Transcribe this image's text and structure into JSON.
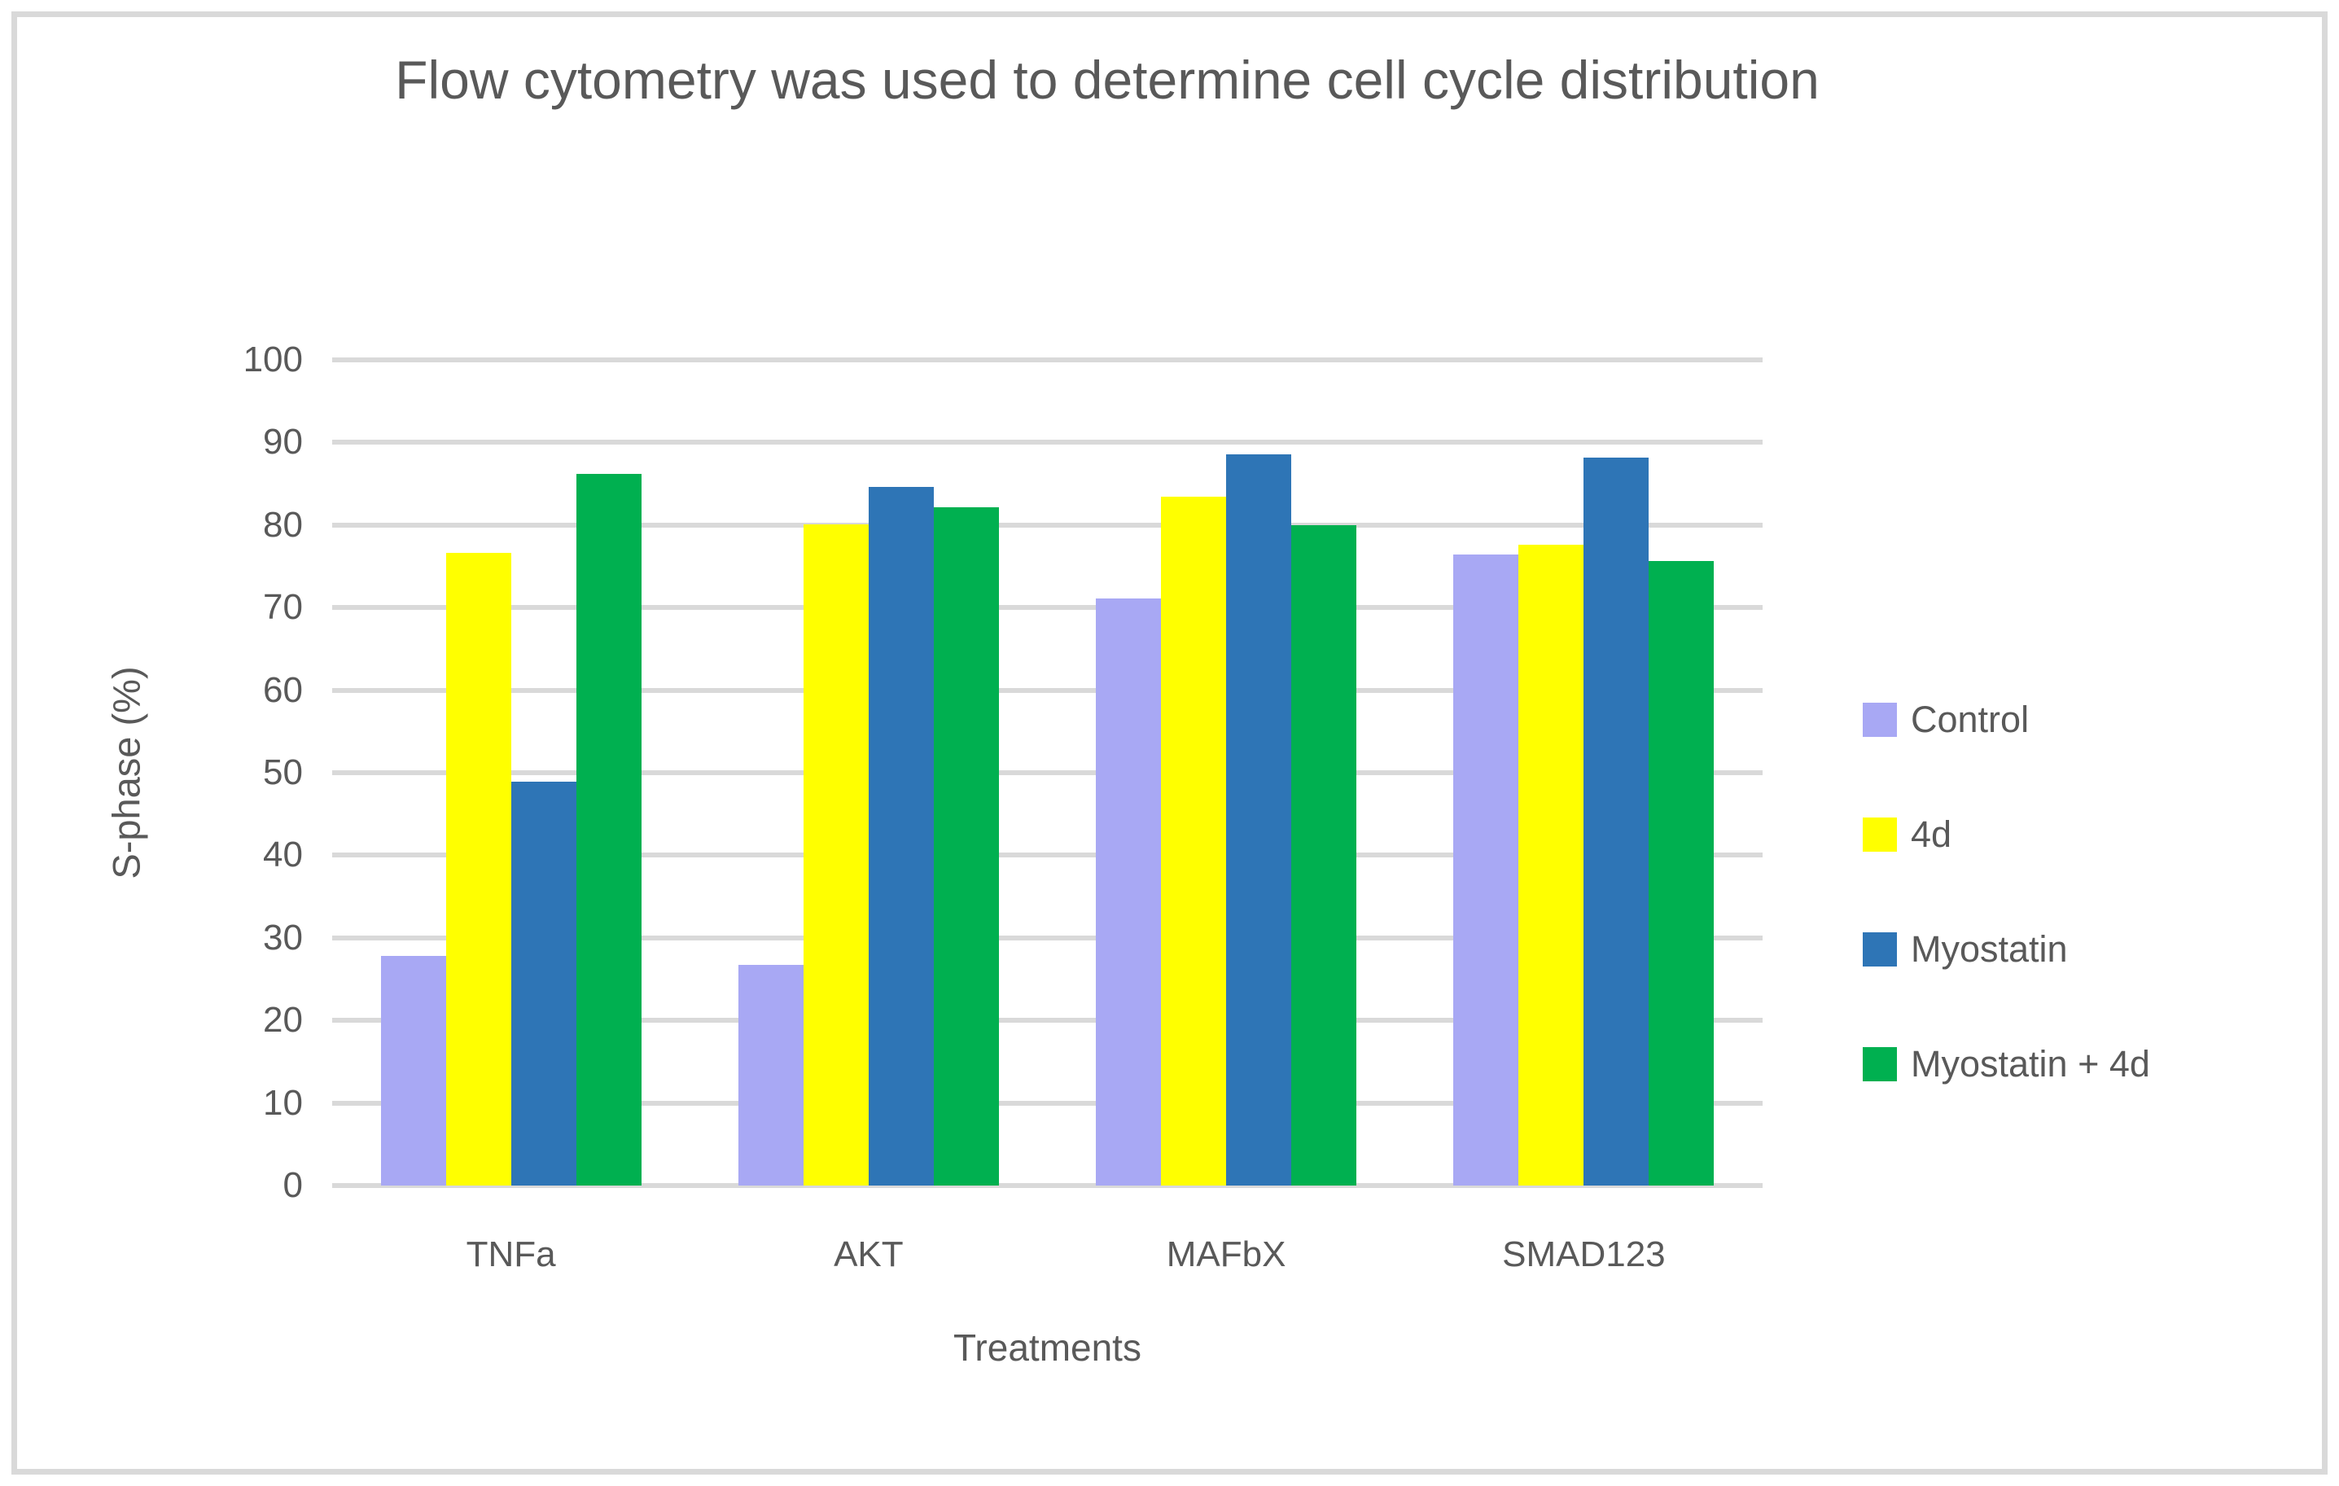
{
  "chart": {
    "title": "Flow cytometry was used to determine cell cycle distribution",
    "xlabel": "Treatments",
    "ylabel": "S-phase (%)"
  },
  "chart_data": {
    "type": "bar",
    "title": "Flow cytometry was used to determine cell cycle distribution",
    "xlabel": "Treatments",
    "ylabel": "S-phase (%)",
    "categories": [
      "TNFa",
      "AKT",
      "MAFbX",
      "SMAD123"
    ],
    "series": [
      {
        "name": "Control",
        "color": "#A8A8F4",
        "values": [
          27.8,
          26.7,
          71.1,
          76.4
        ]
      },
      {
        "name": "4d",
        "color": "#FFFF00",
        "values": [
          76.6,
          80.1,
          83.4,
          77.6
        ]
      },
      {
        "name": "Myostatin",
        "color": "#2E75B6",
        "values": [
          48.9,
          84.6,
          88.6,
          88.2
        ]
      },
      {
        "name": "Myostatin + 4d",
        "color": "#00B050",
        "values": [
          86.2,
          82.2,
          80.0,
          75.6
        ]
      }
    ],
    "ylim": [
      0,
      100
    ],
    "ytick_step": 10,
    "yticks": [
      0,
      10,
      20,
      30,
      40,
      50,
      60,
      70,
      80,
      90,
      100
    ],
    "grid": true,
    "legend_position": "right",
    "colors": {
      "text": "#595959",
      "gridline": "#D9D9D9",
      "frame_border": "#D9D9D9",
      "background": "#FFFFFF"
    }
  }
}
